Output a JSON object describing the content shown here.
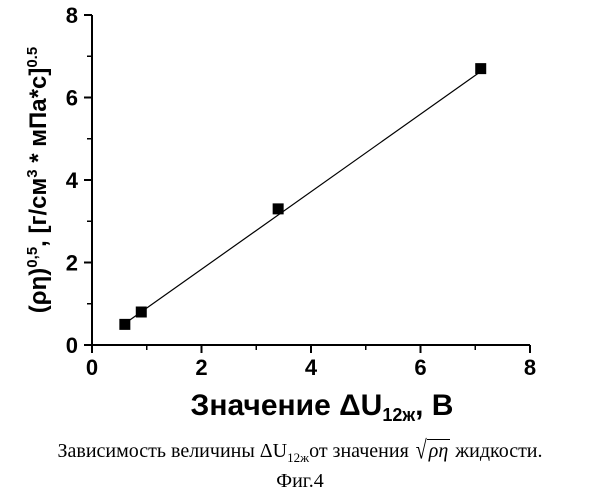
{
  "chart_data": {
    "type": "scatter",
    "x": [
      0.6,
      0.9,
      3.4,
      7.1
    ],
    "y": [
      0.5,
      0.8,
      3.3,
      6.7
    ],
    "fit_line": {
      "x": [
        0.6,
        7.1
      ],
      "y": [
        0.52,
        6.63
      ]
    },
    "xlim": [
      0,
      8
    ],
    "ylim": [
      0,
      8
    ],
    "x_ticks": [
      0,
      2,
      4,
      6,
      8
    ],
    "y_ticks": [
      0,
      2,
      4,
      6,
      8
    ],
    "xlabel": "Значение ΔU",
    "xlabel_sub": "12ж",
    "xlabel_suffix": ", В",
    "ylabel": "(ρη)",
    "ylabel_sup1": "0,5",
    "ylabel_mid": ", [г/см",
    "ylabel_sup2": "3",
    "ylabel_end": " * мПа*с]",
    "ylabel_sup3": "0.5",
    "marker": "filled-square",
    "grid": false
  },
  "caption": {
    "prefix": "Зависимость величины ΔU",
    "sub": "12ж",
    "middle": "от значения ",
    "sqrt_content": "ρη",
    "suffix": " жидкости."
  },
  "figure_label": "Фиг.4"
}
